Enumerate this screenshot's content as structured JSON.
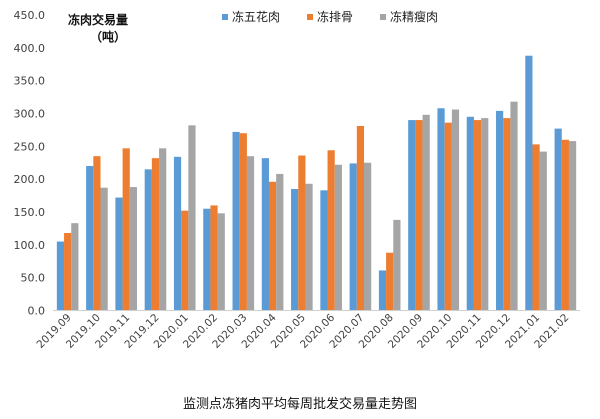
{
  "chart_data": {
    "type": "bar",
    "title": "",
    "ylabel": "冻肉交易量",
    "ylabel_unit": "（吨）",
    "caption": "监测点冻猪肉平均每周批发交易量走势图",
    "ylim": [
      0,
      450
    ],
    "ytick_values": [
      0,
      50,
      100,
      150,
      200,
      250,
      300,
      350,
      400,
      450
    ],
    "ytick_labels": [
      "0.0",
      "50.0",
      "100.0",
      "150.0",
      "200.0",
      "250.0",
      "300.0",
      "350.0",
      "400.0",
      "450.0"
    ],
    "categories": [
      "2019.09",
      "2019.10",
      "2019.11",
      "2019.12",
      "2020.01",
      "2020.02",
      "2020.03",
      "2020.04",
      "2020.05",
      "2020.06",
      "2020.07",
      "2020.08",
      "2020.09",
      "2020.10",
      "2020.11",
      "2020.12",
      "2021.01",
      "2021.02"
    ],
    "series": [
      {
        "name": "冻五花肉",
        "color": "#5B9BD5",
        "values": [
          105,
          220,
          172,
          215,
          234,
          155,
          272,
          232,
          185,
          183,
          224,
          61,
          290,
          308,
          295,
          304,
          388,
          277
        ]
      },
      {
        "name": "冻排骨",
        "color": "#ED7D31",
        "values": [
          118,
          235,
          247,
          232,
          152,
          160,
          270,
          196,
          236,
          244,
          281,
          88,
          290,
          286,
          290,
          293,
          253,
          260
        ]
      },
      {
        "name": "冻精瘦肉",
        "color": "#A5A5A5",
        "values": [
          133,
          187,
          188,
          247,
          282,
          148,
          235,
          208,
          193,
          222,
          225,
          138,
          298,
          306,
          293,
          318,
          242,
          258
        ]
      }
    ],
    "grid": false,
    "legend_position": "top"
  }
}
